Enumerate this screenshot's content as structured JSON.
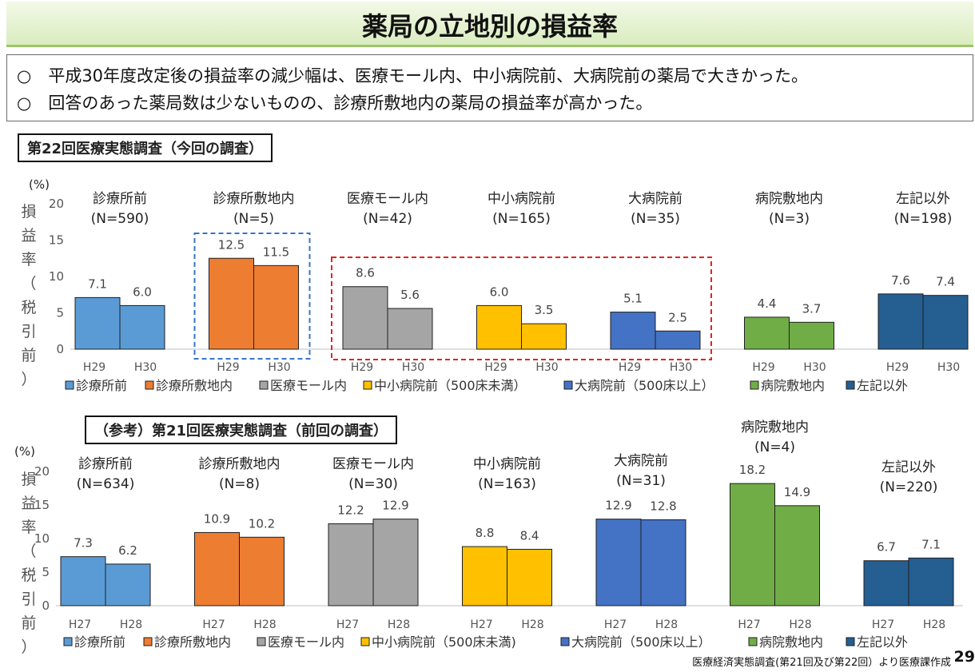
{
  "page_title": "薬局の立地別の損益率",
  "summary": [
    "○　平成30年度改定後の損益率の減少幅は、医療モール内、中小病院前、大病院前の薬局で大きかった。",
    "○　回答のあった薬局数は少ないものの、診療所敷地内の薬局の損益率が高かった。"
  ],
  "footnote": "医療経済実態調査(第21回及び第22回）より医療課作成",
  "page_number": "29",
  "colors": [
    "#5b9bd5",
    "#ed7d31",
    "#a5a5a5",
    "#ffc000",
    "#4472c4",
    "#70ad47",
    "#255e91"
  ],
  "chart_data": [
    {
      "type": "bar",
      "section_label": "第22回医療実態調査（今回の調査）",
      "unit": "(%)",
      "ylabel": "損益率（税引前）",
      "ylim": [
        0,
        20
      ],
      "yticks": [
        0,
        5,
        10,
        15,
        20
      ],
      "x_labels": [
        "H29",
        "H30"
      ],
      "groups": [
        {
          "name": "診療所前",
          "n": "(N=590)",
          "values": [
            7.1,
            6.0
          ],
          "labels": [
            "7.1",
            "6.0"
          ]
        },
        {
          "name": "診療所敷地内",
          "n": "(N=5)",
          "values": [
            12.5,
            11.5
          ],
          "labels": [
            "12.5",
            "11.5"
          ]
        },
        {
          "name": "医療モール内",
          "n": "(N=42)",
          "values": [
            8.6,
            5.6
          ],
          "labels": [
            "8.6",
            "5.6"
          ]
        },
        {
          "name": "中小病院前",
          "n": "(N=165)",
          "values": [
            6.0,
            3.5
          ],
          "labels": [
            "6.0",
            "3.5"
          ]
        },
        {
          "name": "大病院前",
          "n": "(N=35)",
          "values": [
            5.1,
            2.5
          ],
          "labels": [
            "5.1",
            "2.5"
          ]
        },
        {
          "name": "病院敷地内",
          "n": "(N=3)",
          "values": [
            4.4,
            3.7
          ],
          "labels": [
            "4.4",
            "3.7"
          ]
        },
        {
          "name": "左記以外",
          "n": "(N=198)",
          "values": [
            7.6,
            7.4
          ],
          "labels": [
            "7.6",
            "7.4"
          ]
        }
      ],
      "legend": [
        "診療所前",
        "診療所敷地内",
        "医療モール内",
        "中小病院前（500床未満）",
        "大病院前（500床以上）",
        "病院敷地内",
        "左記以外"
      ],
      "highlight_blue": [
        1
      ],
      "highlight_red": [
        2,
        4
      ]
    },
    {
      "type": "bar",
      "section_label": "（参考）第21回医療実態調査（前回の調査）",
      "unit": "(%)",
      "ylabel": "損益率（税引前）",
      "ylim": [
        0,
        20
      ],
      "yticks": [
        0,
        5,
        10,
        15,
        20
      ],
      "x_labels": [
        "H27",
        "H28"
      ],
      "groups": [
        {
          "name": "診療所前",
          "n": "(N=634)",
          "values": [
            7.3,
            6.2
          ],
          "labels": [
            "7.3",
            "6.2"
          ]
        },
        {
          "name": "診療所敷地内",
          "n": "(N=8)",
          "values": [
            10.9,
            10.2
          ],
          "labels": [
            "10.9",
            "10.2"
          ]
        },
        {
          "name": "医療モール内",
          "n": "(N=30)",
          "values": [
            12.2,
            12.9
          ],
          "labels": [
            "12.2",
            "12.9"
          ]
        },
        {
          "name": "中小病院前",
          "n": "(N=163)",
          "values": [
            8.8,
            8.4
          ],
          "labels": [
            "8.8",
            "8.4"
          ]
        },
        {
          "name": "大病院前",
          "n": "(N=31)",
          "values": [
            12.9,
            12.8
          ],
          "labels": [
            "12.9",
            "12.8"
          ]
        },
        {
          "name": "病院敷地内",
          "n": "(N=4)",
          "values": [
            18.2,
            14.9
          ],
          "labels": [
            "18.2",
            "14.9"
          ]
        },
        {
          "name": "左記以外",
          "n": "(N=220)",
          "values": [
            6.7,
            7.1
          ],
          "labels": [
            "6.7",
            "7.1"
          ]
        }
      ],
      "legend": [
        "診療所前",
        "診療所敷地内",
        "医療モール内",
        "中小病院前（500床未満)",
        "大病院前（500床以上）",
        "病院敷地内",
        "左記以外"
      ],
      "highlight_blue": [],
      "highlight_red": []
    }
  ]
}
